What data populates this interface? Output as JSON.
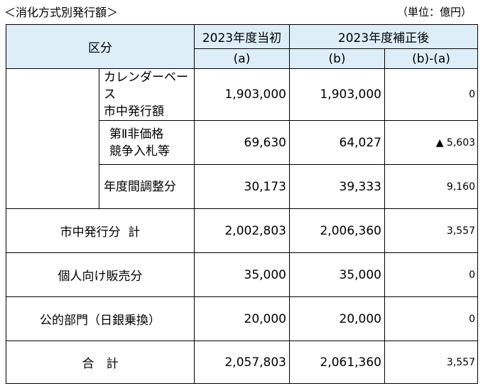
{
  "caption": "＜消化方式別発行額＞",
  "unit": "（単位：億円）",
  "header": {
    "category": "区分",
    "col_a": "2023年度当初",
    "col_a_sub": "(a)",
    "col_b": "2023年度補正後",
    "col_b_sub": "(b)",
    "col_diff": "(b)-(a)"
  },
  "market_subrows": [
    {
      "label_line1": "カレンダーベース",
      "label_line2": "市中発行額",
      "a": "1,903,000",
      "b": "1,903,000",
      "diff": "0"
    },
    {
      "label_line1": "第Ⅱ非価格",
      "label_line2": "競争入札等",
      "a": "69,630",
      "b": "64,027",
      "diff": "▲ 5,603"
    },
    {
      "label_line1": "年度間調整分",
      "label_line2": "",
      "a": "30,173",
      "b": "39,333",
      "diff": "9,160"
    }
  ],
  "rows": [
    {
      "label": "市中発行分  計",
      "a": "2,002,803",
      "b": "2,006,360",
      "diff": "3,557"
    },
    {
      "label": "個人向け販売分",
      "a": "35,000",
      "b": "35,000",
      "diff": "0"
    },
    {
      "label": "公的部門（日銀乗換）",
      "a": "20,000",
      "b": "20,000",
      "diff": "0"
    }
  ],
  "total": {
    "label": "合　計",
    "a": "2,057,803",
    "b": "2,061,360",
    "diff": "3,557"
  }
}
